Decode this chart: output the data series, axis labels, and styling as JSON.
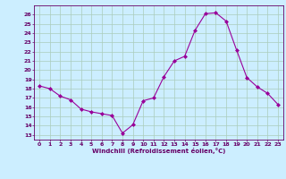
{
  "x": [
    0,
    1,
    2,
    3,
    4,
    5,
    6,
    7,
    8,
    9,
    10,
    11,
    12,
    13,
    14,
    15,
    16,
    17,
    18,
    19,
    20,
    21,
    22,
    23
  ],
  "y": [
    18.3,
    18.0,
    17.2,
    16.8,
    15.8,
    15.5,
    15.3,
    15.1,
    13.2,
    14.1,
    16.7,
    17.0,
    19.3,
    21.0,
    21.5,
    24.3,
    26.1,
    26.2,
    25.3,
    22.2,
    19.2,
    18.2,
    17.5,
    16.3
  ],
  "line_color": "#990099",
  "marker": "D",
  "marker_size": 2,
  "bg_color": "#cceeff",
  "grid_color": "#aaccbb",
  "xlabel": "Windchill (Refroidissement éolien,°C)",
  "xlabel_color": "#660066",
  "tick_color": "#660066",
  "ylim": [
    12.5,
    27
  ],
  "xlim": [
    -0.5,
    23.5
  ],
  "yticks": [
    13,
    14,
    15,
    16,
    17,
    18,
    19,
    20,
    21,
    22,
    23,
    24,
    25,
    26
  ],
  "xticks": [
    0,
    1,
    2,
    3,
    4,
    5,
    6,
    7,
    8,
    9,
    10,
    11,
    12,
    13,
    14,
    15,
    16,
    17,
    18,
    19,
    20,
    21,
    22,
    23
  ],
  "tick_fontsize": 4.5,
  "xlabel_fontsize": 5.0
}
